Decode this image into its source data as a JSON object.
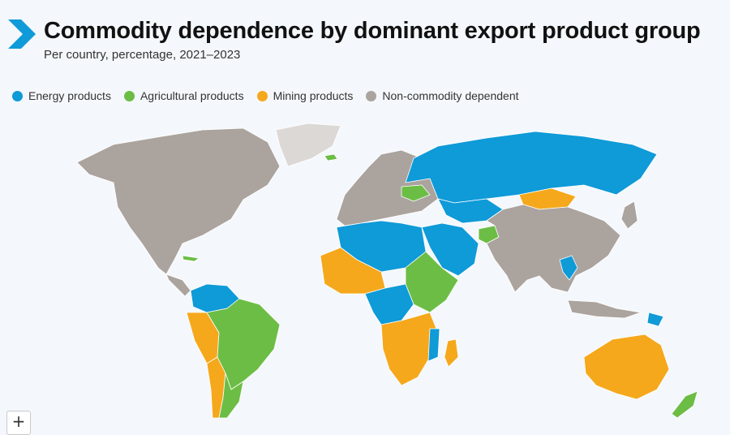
{
  "header": {
    "title": "Commodity dependence by dominant export product group",
    "subtitle": "Per country, percentage, 2021–2023"
  },
  "legend": [
    {
      "label": "Energy products",
      "color": "#0f9ad8"
    },
    {
      "label": "Agricultural products",
      "color": "#6cbd45"
    },
    {
      "label": "Mining products",
      "color": "#f5a81c"
    },
    {
      "label": "Non-commodity dependent",
      "color": "#aba39e"
    }
  ],
  "colors": {
    "accent": "#0f9ad8",
    "ocean": "#f4f8fc",
    "no_data": "#dcd8d6"
  },
  "map_controls": {
    "zoom_in_symbol": "+"
  }
}
